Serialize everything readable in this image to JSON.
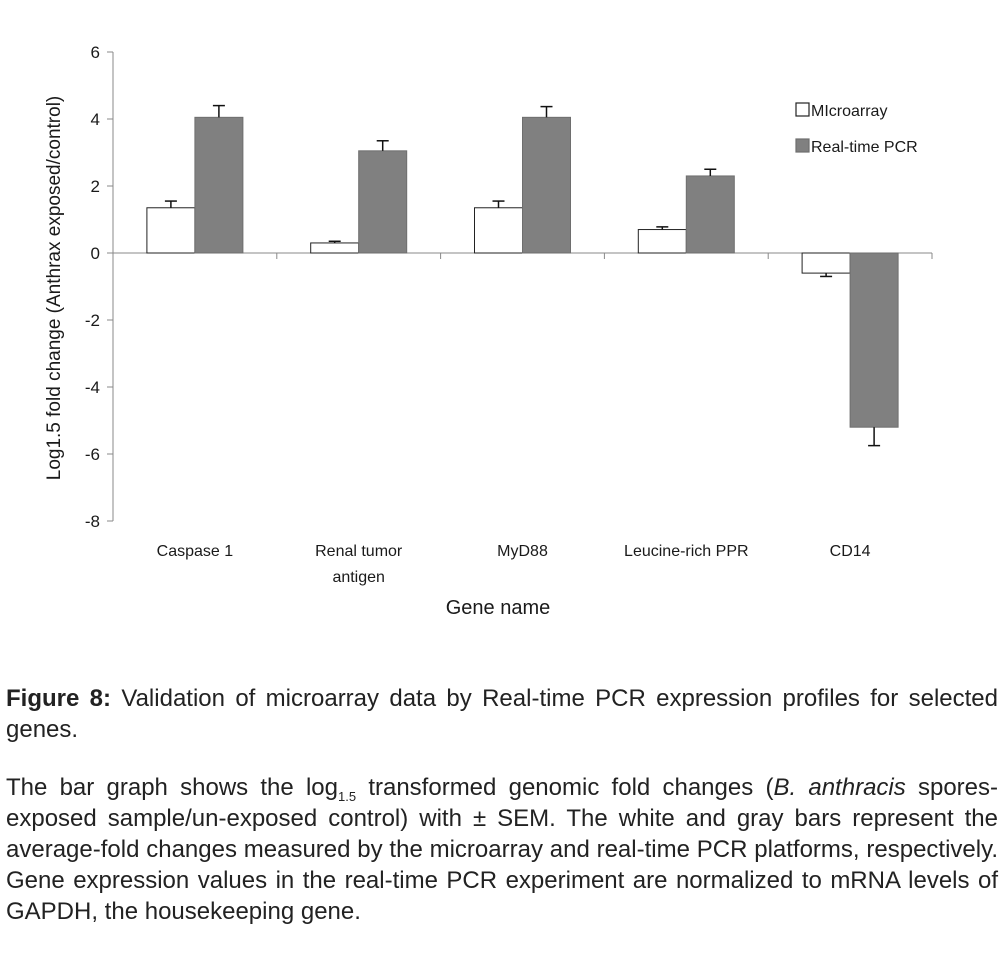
{
  "chart_data": {
    "type": "bar",
    "categories": [
      "Caspase 1",
      "Renal tumor antigen",
      "MyD88",
      "Leucine-rich PPR",
      "CD14"
    ],
    "category_label_lines": [
      [
        "Caspase 1"
      ],
      [
        "Renal tumor",
        "antigen"
      ],
      [
        "MyD88"
      ],
      [
        "Leucine-rich PPR"
      ],
      [
        "CD14"
      ]
    ],
    "series": [
      {
        "name": "MIcroarray",
        "values": [
          1.35,
          0.3,
          1.35,
          0.7,
          -0.6
        ],
        "errors": [
          0.2,
          0.05,
          0.2,
          0.08,
          0.1
        ],
        "color": "#ffffff"
      },
      {
        "name": "Real-time PCR",
        "values": [
          4.05,
          3.05,
          4.05,
          2.3,
          -5.2
        ],
        "errors": [
          0.35,
          0.3,
          0.32,
          0.2,
          0.55
        ],
        "color": "#808080"
      }
    ],
    "ylim": [
      -8,
      6
    ],
    "yticks": [
      "6",
      "4",
      "2",
      "0",
      "-2",
      "-4",
      "-6",
      "-8"
    ],
    "ylabel": "Log1.5 fold change (Anthrax exposed/control)",
    "xlabel": "Gene name",
    "title": "",
    "grid": false,
    "legend_position": "top-right"
  },
  "caption": {
    "title_label": "Figure 8:",
    "title_text": " Validation of microarray data by Real-time PCR expression profiles for selected genes.",
    "body_part1": "The bar graph shows the log",
    "body_sub": "1.5",
    "body_part2": " transformed genomic fold changes (",
    "body_italic": "B. anthracis",
    "body_part3": " spores-exposed sample/un-exposed control) with ± SEM. The white and gray bars represent the average-fold changes measured by the microarray and real-time PCR platforms, respectively. Gene expression values in the real-time PCR experiment are normalized to mRNA levels of GAPDH, the housekeeping gene."
  }
}
